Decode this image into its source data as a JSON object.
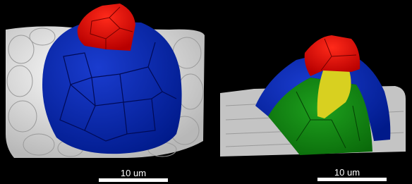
{
  "panels": [
    {
      "scale_label": "10 um"
    },
    {
      "scale_label": "10 um"
    }
  ]
}
